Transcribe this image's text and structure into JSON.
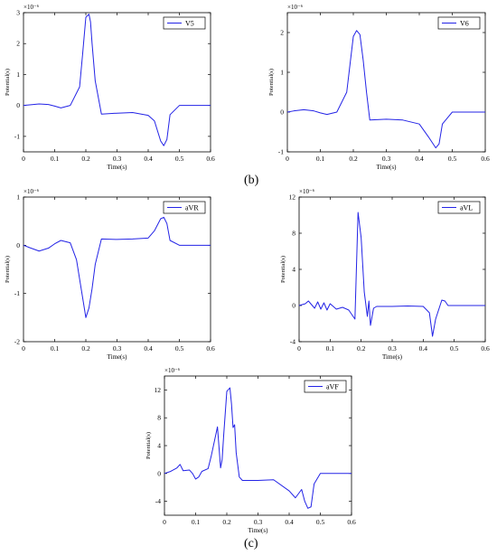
{
  "panel_labels": {
    "b": "(b)",
    "c": "(c)"
  },
  "style": {
    "line_color": "#2323e6",
    "axis_color": "#000000"
  },
  "chart_data": [
    {
      "type": "line",
      "legend": "V5",
      "legend_position": "top-right",
      "xlabel": "Time(s)",
      "ylabel": "Potential(s)",
      "exponent": "×10⁻⁶",
      "xlim": [
        0,
        0.6
      ],
      "ylim": [
        -1.5,
        3
      ],
      "xticks": [
        0,
        0.1,
        0.2,
        0.3,
        0.4,
        0.5,
        0.6
      ],
      "yticks": [
        -1,
        0,
        1,
        2,
        3
      ],
      "grid": false,
      "x": [
        0,
        0.02,
        0.05,
        0.08,
        0.1,
        0.12,
        0.15,
        0.18,
        0.19,
        0.2,
        0.21,
        0.215,
        0.22,
        0.23,
        0.25,
        0.3,
        0.35,
        0.4,
        0.42,
        0.44,
        0.45,
        0.46,
        0.47,
        0.5,
        0.6
      ],
      "y": [
        0,
        0.02,
        0.05,
        0.03,
        -0.02,
        -0.08,
        0,
        0.6,
        1.7,
        2.85,
        2.95,
        2.7,
        2.0,
        0.8,
        -0.28,
        -0.25,
        -0.23,
        -0.32,
        -0.5,
        -1.15,
        -1.3,
        -1.1,
        -0.3,
        0,
        0
      ]
    },
    {
      "type": "line",
      "legend": "V6",
      "legend_position": "top-right",
      "xlabel": "Time(s)",
      "ylabel": "Potential(s)",
      "exponent": "×10⁻⁶",
      "xlim": [
        0,
        0.6
      ],
      "ylim": [
        -1,
        2.5
      ],
      "xticks": [
        0,
        0.1,
        0.2,
        0.3,
        0.4,
        0.5,
        0.6
      ],
      "yticks": [
        -1,
        0,
        1,
        2
      ],
      "grid": false,
      "x": [
        0,
        0.02,
        0.05,
        0.08,
        0.1,
        0.12,
        0.15,
        0.18,
        0.19,
        0.2,
        0.21,
        0.22,
        0.23,
        0.24,
        0.25,
        0.3,
        0.35,
        0.4,
        0.43,
        0.45,
        0.46,
        0.47,
        0.5,
        0.6
      ],
      "y": [
        0,
        0.03,
        0.06,
        0.03,
        -0.02,
        -0.06,
        0,
        0.5,
        1.2,
        1.9,
        2.05,
        1.95,
        1.3,
        0.5,
        -0.2,
        -0.18,
        -0.2,
        -0.3,
        -0.65,
        -0.9,
        -0.8,
        -0.3,
        0,
        0
      ]
    },
    {
      "type": "line",
      "legend": "aVR",
      "legend_position": "top-right",
      "xlabel": "Time(s)",
      "ylabel": "Potential(s)",
      "exponent": "×10⁻⁶",
      "xlim": [
        0,
        0.6
      ],
      "ylim": [
        -2,
        1
      ],
      "xticks": [
        0,
        0.1,
        0.2,
        0.3,
        0.4,
        0.5,
        0.6
      ],
      "yticks": [
        -2,
        -1,
        0,
        1
      ],
      "grid": false,
      "x": [
        0,
        0.02,
        0.05,
        0.08,
        0.1,
        0.12,
        0.15,
        0.17,
        0.18,
        0.19,
        0.2,
        0.21,
        0.22,
        0.23,
        0.25,
        0.3,
        0.35,
        0.4,
        0.42,
        0.44,
        0.45,
        0.46,
        0.47,
        0.5,
        0.6
      ],
      "y": [
        0,
        -0.05,
        -0.12,
        -0.06,
        0.03,
        0.1,
        0.05,
        -0.3,
        -0.7,
        -1.1,
        -1.5,
        -1.3,
        -0.9,
        -0.4,
        0.13,
        0.12,
        0.13,
        0.15,
        0.3,
        0.55,
        0.58,
        0.45,
        0.1,
        0,
        0
      ]
    },
    {
      "type": "line",
      "legend": "aVL",
      "legend_position": "top-right",
      "xlabel": "Time(s)",
      "ylabel": "Potential(s)",
      "exponent": "×10⁻⁶",
      "xlim": [
        0,
        0.6
      ],
      "ylim": [
        -4,
        12
      ],
      "xticks": [
        0,
        0.1,
        0.2,
        0.3,
        0.4,
        0.5,
        0.6
      ],
      "yticks": [
        -4,
        0,
        4,
        8,
        12
      ],
      "grid": false,
      "x": [
        0,
        0.02,
        0.03,
        0.05,
        0.06,
        0.07,
        0.08,
        0.09,
        0.1,
        0.12,
        0.14,
        0.16,
        0.18,
        0.19,
        0.2,
        0.21,
        0.22,
        0.225,
        0.23,
        0.24,
        0.25,
        0.3,
        0.35,
        0.4,
        0.42,
        0.43,
        0.44,
        0.46,
        0.47,
        0.48,
        0.5,
        0.6
      ],
      "y": [
        0,
        0.2,
        0.5,
        -0.3,
        0.4,
        -0.4,
        0.3,
        -0.5,
        0.2,
        -0.4,
        -0.2,
        -0.5,
        -1.5,
        10.3,
        7.5,
        1.5,
        -1.2,
        0.5,
        -2.2,
        -0.3,
        -0.1,
        -0.1,
        -0.05,
        -0.1,
        -0.8,
        -3.4,
        -1.5,
        0.6,
        0.5,
        0,
        0,
        0
      ]
    },
    {
      "type": "line",
      "legend": "aVF",
      "legend_position": "top-right",
      "xlabel": "Time(s)",
      "ylabel": "Potential(s)",
      "exponent": "×10⁻⁶",
      "xlim": [
        0,
        0.6
      ],
      "ylim": [
        -6,
        14
      ],
      "xticks": [
        0,
        0.1,
        0.2,
        0.3,
        0.4,
        0.5,
        0.6
      ],
      "yticks": [
        -4,
        0,
        4,
        8,
        12
      ],
      "grid": false,
      "x": [
        0,
        0.02,
        0.04,
        0.05,
        0.06,
        0.08,
        0.09,
        0.1,
        0.11,
        0.12,
        0.14,
        0.15,
        0.17,
        0.18,
        0.185,
        0.19,
        0.2,
        0.21,
        0.215,
        0.22,
        0.225,
        0.23,
        0.24,
        0.25,
        0.3,
        0.35,
        0.4,
        0.42,
        0.44,
        0.45,
        0.46,
        0.47,
        0.48,
        0.5,
        0.6
      ],
      "y": [
        0,
        0.3,
        0.8,
        1.3,
        0.4,
        0.5,
        0,
        -0.8,
        -0.5,
        0.3,
        0.7,
        2.5,
        6.7,
        0.8,
        2,
        5.5,
        11.8,
        12.3,
        10,
        6.6,
        7,
        3,
        -0.5,
        -1,
        -1,
        -0.9,
        -2.5,
        -3.5,
        -2.3,
        -4,
        -5,
        -4.8,
        -1.5,
        0,
        0
      ]
    }
  ]
}
